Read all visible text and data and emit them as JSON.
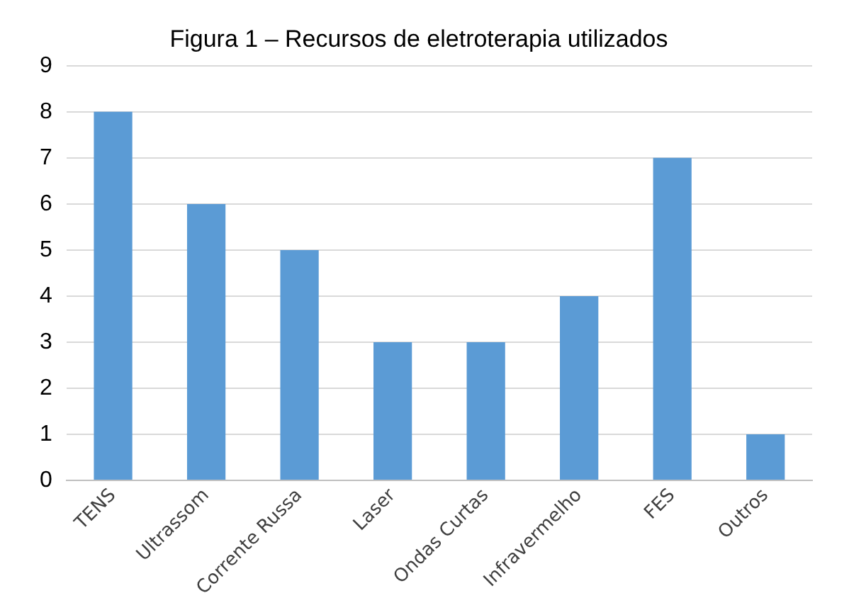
{
  "chart_data": {
    "type": "bar",
    "title": "Figura 1 – Recursos de eletroterapia utilizados",
    "categories": [
      "TENS",
      "Ultrassom",
      "Corrente Russa",
      "Laser",
      "Ondas Curtas",
      "Infravermelho",
      "FES",
      "Outros"
    ],
    "values": [
      8,
      6,
      5,
      3,
      3,
      4,
      7,
      1
    ],
    "color": "#5b9bd5",
    "ylim": [
      0,
      9
    ],
    "yticks": [
      0,
      1,
      2,
      3,
      4,
      5,
      6,
      7,
      8,
      9
    ],
    "grid": "y"
  }
}
